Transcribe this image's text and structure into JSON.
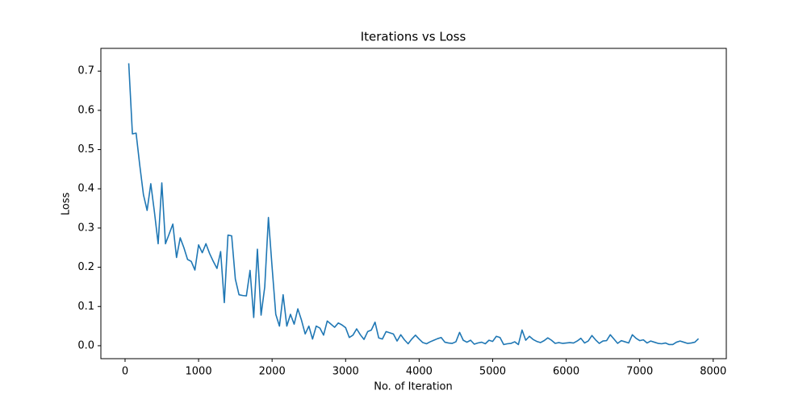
{
  "chart_data": {
    "type": "line",
    "title": "Iterations vs Loss",
    "x_label": "No. of Iteration",
    "y_label": "Loss",
    "x": [
      50,
      100,
      150,
      200,
      250,
      300,
      350,
      400,
      450,
      500,
      550,
      600,
      650,
      700,
      750,
      800,
      850,
      900,
      950,
      1000,
      1050,
      1100,
      1150,
      1200,
      1250,
      1300,
      1350,
      1400,
      1450,
      1500,
      1550,
      1600,
      1650,
      1700,
      1750,
      1800,
      1850,
      1900,
      1950,
      2000,
      2050,
      2100,
      2150,
      2200,
      2250,
      2300,
      2350,
      2400,
      2450,
      2500,
      2550,
      2600,
      2650,
      2700,
      2750,
      2800,
      2850,
      2900,
      2950,
      3000,
      3050,
      3100,
      3150,
      3200,
      3250,
      3300,
      3350,
      3400,
      3450,
      3500,
      3550,
      3600,
      3650,
      3700,
      3750,
      3800,
      3850,
      3900,
      3950,
      4000,
      4050,
      4100,
      4150,
      4200,
      4250,
      4300,
      4350,
      4400,
      4450,
      4500,
      4550,
      4600,
      4650,
      4700,
      4750,
      4800,
      4850,
      4900,
      4950,
      5000,
      5050,
      5100,
      5150,
      5200,
      5250,
      5300,
      5350,
      5400,
      5450,
      5500,
      5550,
      5600,
      5650,
      5700,
      5750,
      5800,
      5850,
      5900,
      5950,
      6000,
      6050,
      6100,
      6150,
      6200,
      6250,
      6300,
      6350,
      6400,
      6450,
      6500,
      6550,
      6600,
      6650,
      6700,
      6750,
      6800,
      6850,
      6900,
      6950,
      7000,
      7050,
      7100,
      7150,
      7200,
      7250,
      7300,
      7350,
      7400,
      7450,
      7500,
      7550,
      7600,
      7650,
      7700,
      7750,
      7800
    ],
    "series": [
      {
        "name": "Loss",
        "color": "#1f77b4",
        "values": [
          0.72,
          0.54,
          0.542,
          0.46,
          0.385,
          0.345,
          0.413,
          0.34,
          0.26,
          0.415,
          0.26,
          0.285,
          0.31,
          0.225,
          0.275,
          0.25,
          0.22,
          0.215,
          0.193,
          0.257,
          0.237,
          0.26,
          0.235,
          0.215,
          0.197,
          0.24,
          0.11,
          0.282,
          0.28,
          0.17,
          0.13,
          0.128,
          0.127,
          0.192,
          0.072,
          0.246,
          0.078,
          0.15,
          0.327,
          0.2,
          0.08,
          0.05,
          0.13,
          0.05,
          0.08,
          0.055,
          0.094,
          0.065,
          0.03,
          0.05,
          0.017,
          0.05,
          0.045,
          0.027,
          0.063,
          0.055,
          0.047,
          0.058,
          0.053,
          0.046,
          0.021,
          0.027,
          0.043,
          0.028,
          0.016,
          0.036,
          0.04,
          0.06,
          0.02,
          0.017,
          0.036,
          0.033,
          0.03,
          0.012,
          0.028,
          0.015,
          0.005,
          0.017,
          0.027,
          0.017,
          0.008,
          0.005,
          0.01,
          0.014,
          0.018,
          0.021,
          0.009,
          0.007,
          0.006,
          0.01,
          0.034,
          0.014,
          0.009,
          0.014,
          0.004,
          0.007,
          0.009,
          0.005,
          0.014,
          0.011,
          0.024,
          0.021,
          0.003,
          0.005,
          0.006,
          0.01,
          0.003,
          0.04,
          0.014,
          0.024,
          0.016,
          0.011,
          0.008,
          0.013,
          0.02,
          0.014,
          0.006,
          0.008,
          0.006,
          0.007,
          0.008,
          0.007,
          0.012,
          0.019,
          0.007,
          0.012,
          0.026,
          0.015,
          0.006,
          0.012,
          0.013,
          0.028,
          0.017,
          0.006,
          0.013,
          0.01,
          0.007,
          0.028,
          0.019,
          0.013,
          0.015,
          0.007,
          0.012,
          0.009,
          0.006,
          0.005,
          0.007,
          0.003,
          0.003,
          0.009,
          0.012,
          0.009,
          0.006,
          0.007,
          0.009,
          0.018
        ]
      }
    ],
    "xlim": [
      -329,
      8178
    ],
    "ylim": [
      -0.033,
      0.758
    ],
    "xticks": [
      0,
      1000,
      2000,
      3000,
      4000,
      5000,
      6000,
      7000,
      8000
    ],
    "yticks": [
      {
        "value": 0,
        "label": "0.0"
      },
      0.1,
      0.2,
      0.3,
      0.4,
      0.5,
      0.6,
      0.7
    ]
  }
}
